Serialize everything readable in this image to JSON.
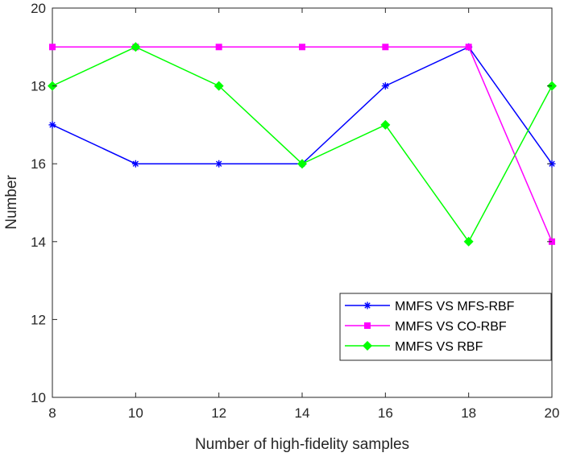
{
  "chart_data": {
    "type": "line",
    "title": "",
    "xlabel": "Number of high-fidelity samples",
    "ylabel": "Number",
    "xlim": [
      8,
      20
    ],
    "ylim": [
      10,
      20
    ],
    "x_ticks": [
      "8",
      "10",
      "12",
      "14",
      "16",
      "18",
      "20"
    ],
    "y_ticks": [
      "10",
      "12",
      "14",
      "16",
      "18",
      "20"
    ],
    "grid": false,
    "legend_position": "bottom-right",
    "x": [
      8,
      10,
      12,
      14,
      16,
      18,
      20
    ],
    "series": [
      {
        "name": "MMFS VS MFS-RBF",
        "color": "#0000ff",
        "marker": "asterisk",
        "values": [
          17,
          16,
          16,
          16,
          18,
          19,
          16
        ]
      },
      {
        "name": "MMFS VS CO-RBF",
        "color": "#ff00ff",
        "marker": "square",
        "values": [
          19,
          19,
          19,
          19,
          19,
          19,
          14
        ]
      },
      {
        "name": "MMFS VS RBF",
        "color": "#00ff00",
        "marker": "diamond",
        "values": [
          18,
          19,
          18,
          16,
          17,
          14,
          18
        ]
      }
    ]
  }
}
